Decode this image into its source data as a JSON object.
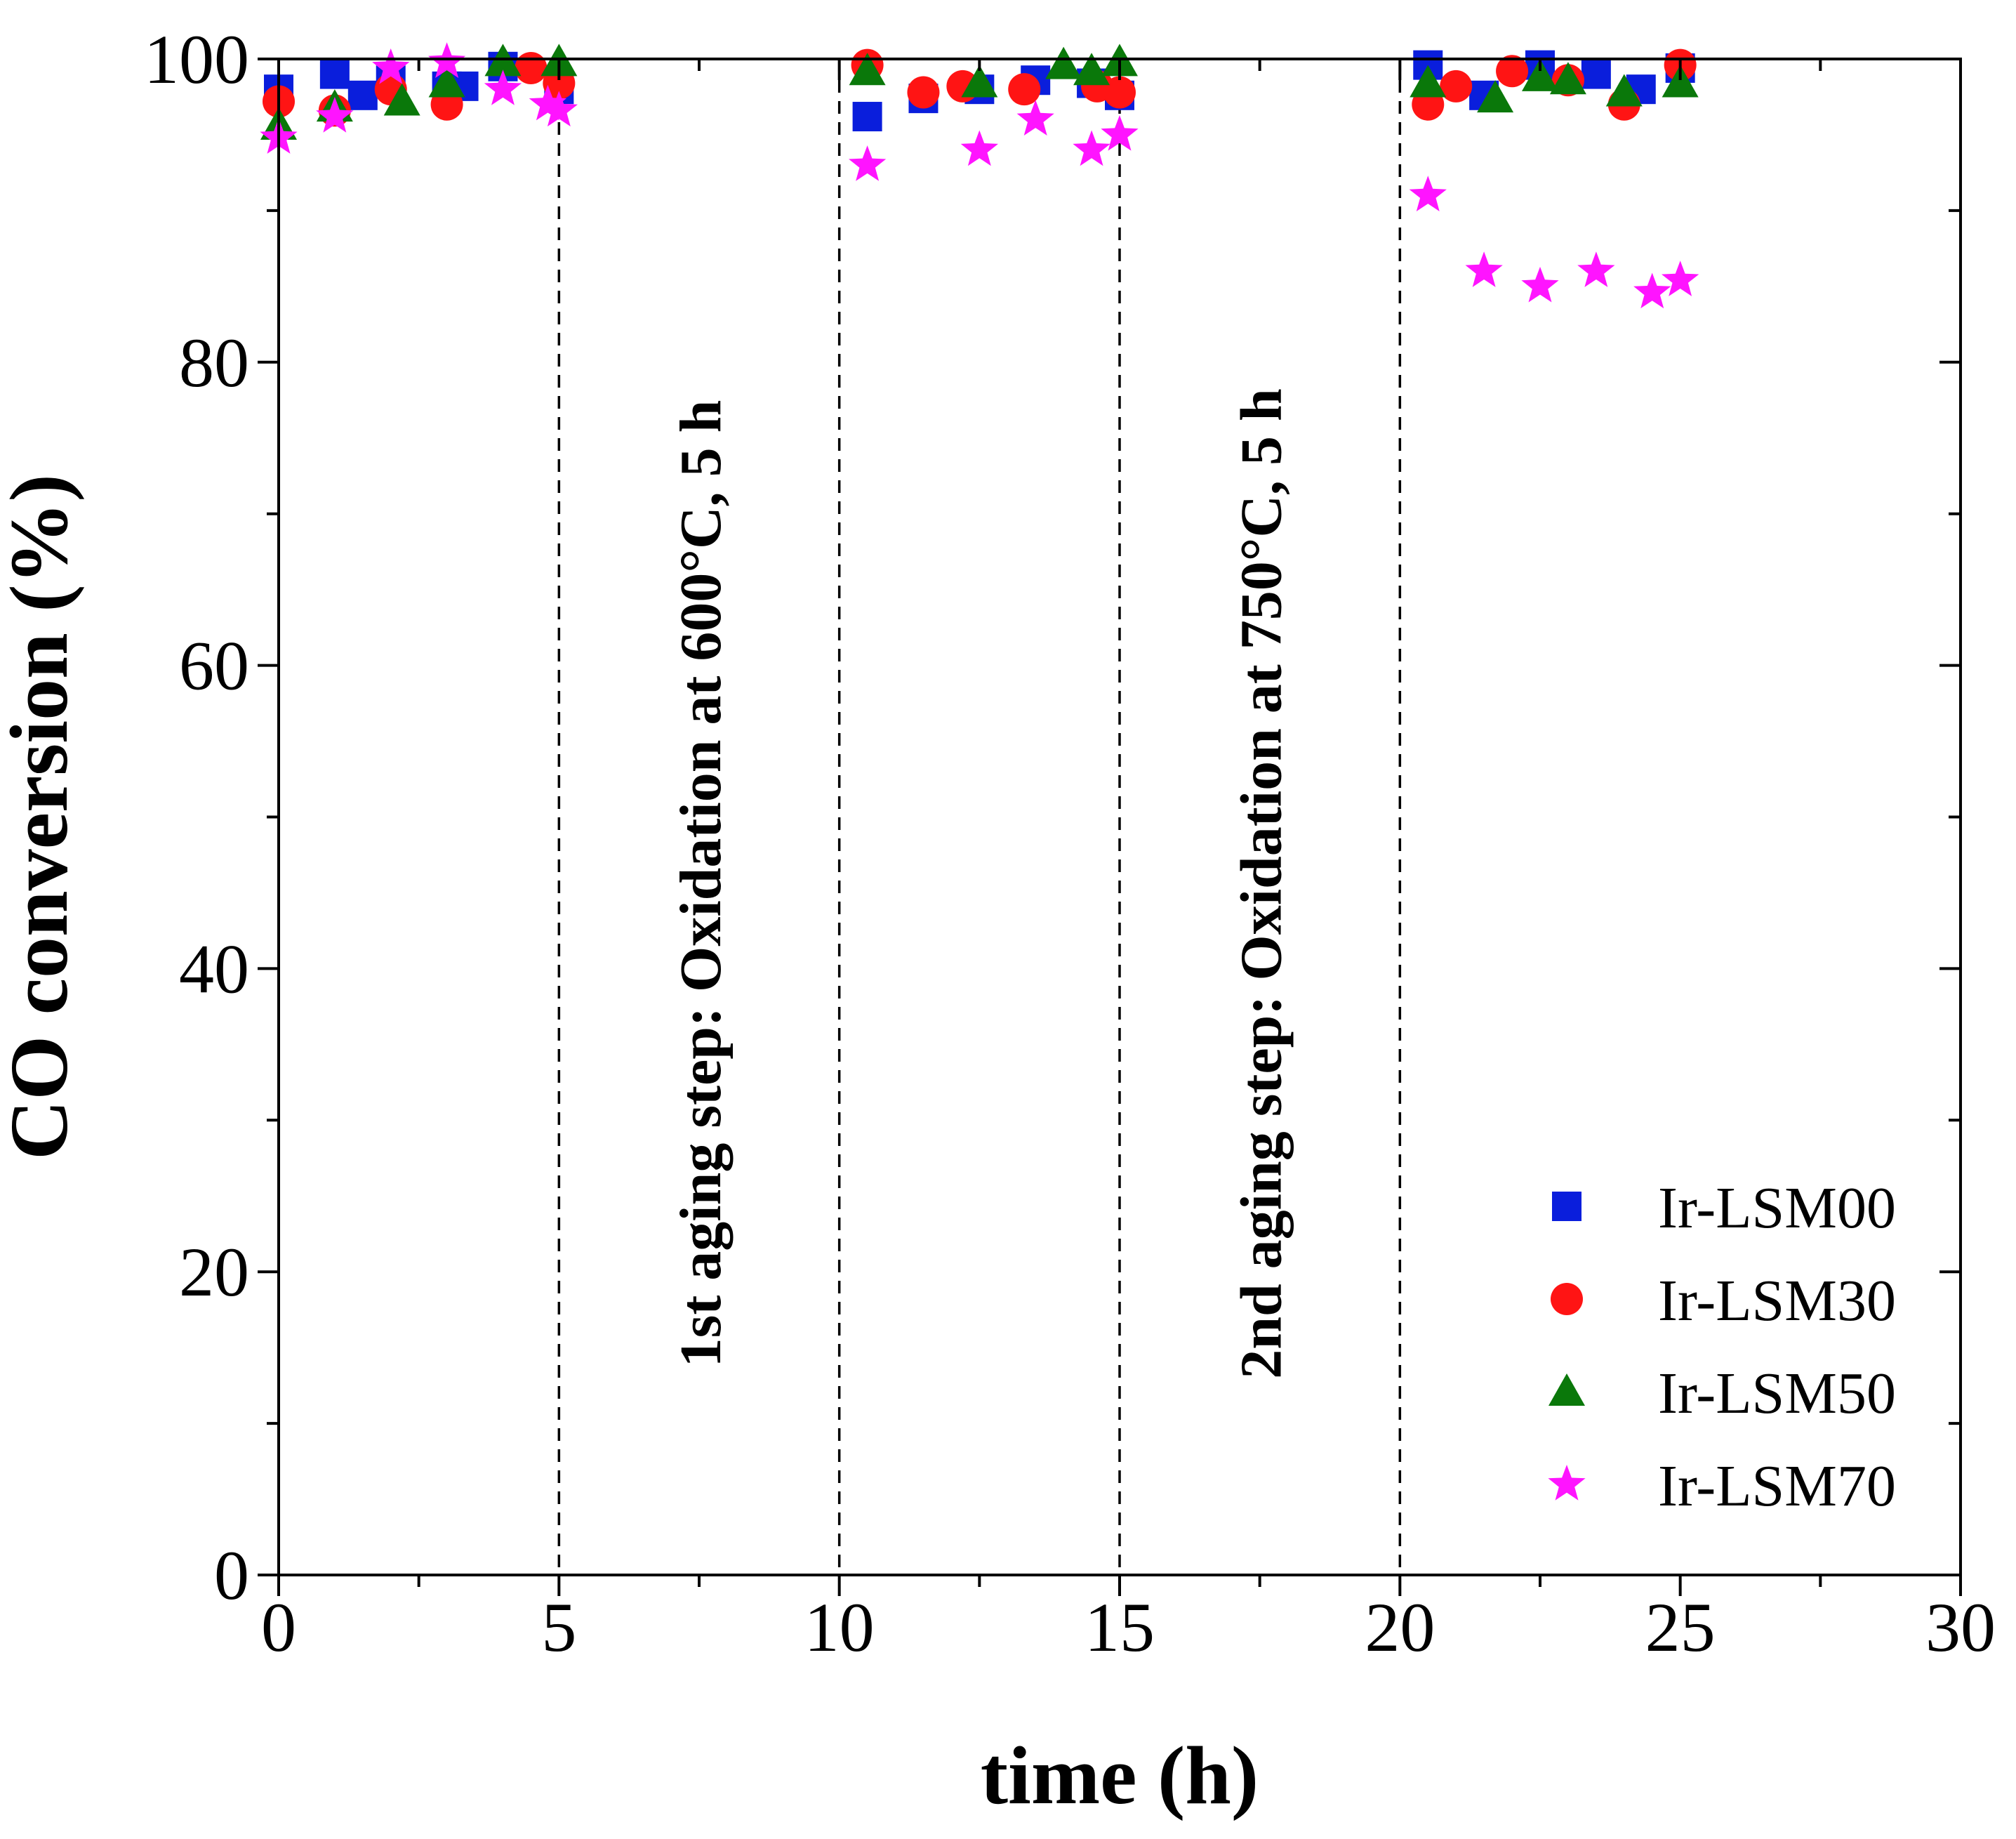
{
  "chart_data": {
    "type": "scatter",
    "title": "",
    "xlabel": "time (h)",
    "ylabel": "CO conversion (%)",
    "xlim": [
      0,
      30
    ],
    "ylim": [
      0,
      100
    ],
    "x_ticks": [
      0,
      5,
      10,
      15,
      20,
      25,
      30
    ],
    "y_ticks": [
      0,
      20,
      40,
      60,
      80,
      100
    ],
    "x_tick_labels": [
      "0",
      "5",
      "10",
      "15",
      "20",
      "25",
      "30"
    ],
    "y_tick_labels": [
      "0",
      "20",
      "40",
      "60",
      "80",
      "100"
    ],
    "grid": false,
    "legend_position": "bottom-right",
    "vertical_reference_lines": [
      5,
      10,
      15,
      20
    ],
    "annotations": [
      {
        "text": "1st aging step: Oxidation at 600°C, 5 h",
        "x": 7.5,
        "orientation": "vertical"
      },
      {
        "text": "2nd aging step: Oxidation at 750°C, 5 h",
        "x": 17.5,
        "orientation": "vertical"
      }
    ],
    "series": [
      {
        "name": "Ir-LSM00",
        "marker": "square",
        "color": "#0a1edc",
        "x": [
          0,
          1,
          1.5,
          2,
          3,
          3.3,
          4,
          5,
          10.5,
          11.5,
          12.5,
          13.5,
          14.5,
          15,
          20.5,
          21.5,
          22.5,
          23.5,
          24.3,
          25
        ],
        "y": [
          98.0,
          99.0,
          97.6,
          98.6,
          98.2,
          98.2,
          99.5,
          98.0,
          96.2,
          97.4,
          98.0,
          98.6,
          98.4,
          97.6,
          99.6,
          97.6,
          99.6,
          99.0,
          98.0,
          99.4
        ]
      },
      {
        "name": "Ir-LSM30",
        "marker": "circle",
        "color": "#ff1414",
        "x": [
          0,
          1,
          2,
          3,
          4.5,
          5,
          10.5,
          11.5,
          12.2,
          13.3,
          14.6,
          15,
          20.5,
          21,
          22,
          23,
          24,
          25
        ],
        "y": [
          97.2,
          96.6,
          98.0,
          97.0,
          99.4,
          98.4,
          99.6,
          97.8,
          98.2,
          98.0,
          98.2,
          97.8,
          97.0,
          98.2,
          99.2,
          98.6,
          97.0,
          99.6
        ]
      },
      {
        "name": "Ir-LSM50",
        "marker": "triangle",
        "color": "#0a780a",
        "x": [
          0,
          1,
          2.2,
          3,
          4,
          5,
          10.5,
          12.5,
          14,
          14.5,
          15,
          20.5,
          21.7,
          22.5,
          23,
          24,
          25
        ],
        "y": [
          95.6,
          96.8,
          97.2,
          98.4,
          99.8,
          99.8,
          99.2,
          98.4,
          99.6,
          99.2,
          99.8,
          98.4,
          97.4,
          98.8,
          98.6,
          97.8,
          98.4
        ]
      },
      {
        "name": "Ir-LSM70",
        "marker": "star",
        "color": "#ff14ff",
        "x": [
          0,
          1,
          2,
          3,
          4,
          4.8,
          5,
          10.5,
          12.5,
          13.5,
          14.5,
          15,
          20.5,
          21.5,
          22.5,
          23.5,
          24.5,
          25
        ],
        "y": [
          94.8,
          96.2,
          99.4,
          99.8,
          98.0,
          97.0,
          96.6,
          93.0,
          94.0,
          96.0,
          94.0,
          95.0,
          91.0,
          86.0,
          85.0,
          86.0,
          84.6,
          85.4
        ]
      }
    ]
  }
}
